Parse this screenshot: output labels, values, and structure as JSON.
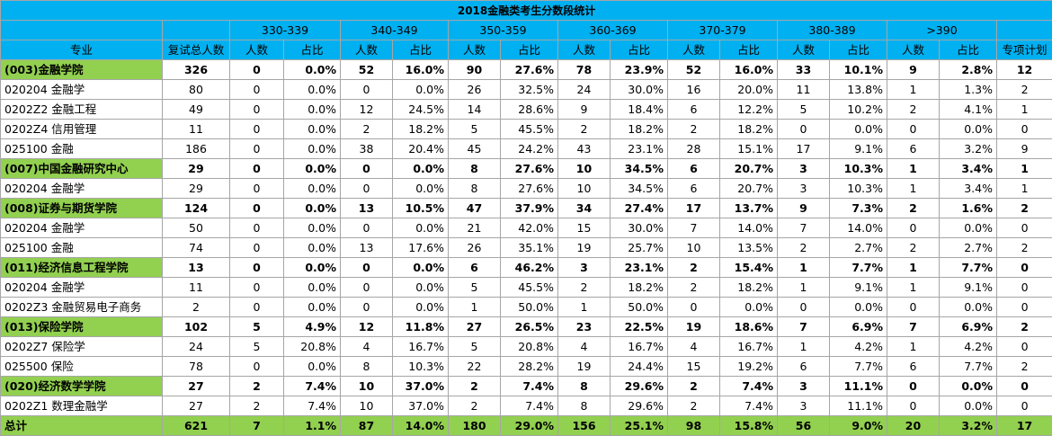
{
  "title": "2018金融类考生分数段统计",
  "header": {
    "groups": [
      "330-339",
      "340-349",
      "350-359",
      "360-369",
      "370-379",
      "380-389",
      ">390"
    ],
    "columns": [
      "专业",
      "复试总人数",
      "人数",
      "占比",
      "人数",
      "占比",
      "人数",
      "占比",
      "人数",
      "占比",
      "人数",
      "占比",
      "人数",
      "占比",
      "人数",
      "占比",
      "专项计划"
    ]
  },
  "rows": [
    [
      "(003)金融学院",
      326,
      0,
      "0.0%",
      52,
      "16.0%",
      90,
      "27.6%",
      78,
      "23.9%",
      52,
      "16.0%",
      33,
      "10.1%",
      9,
      "2.8%",
      12
    ],
    [
      "020204 金融学",
      80,
      0,
      "0.0%",
      0,
      "0.0%",
      26,
      "32.5%",
      24,
      "30.0%",
      16,
      "20.0%",
      11,
      "13.8%",
      1,
      "1.3%",
      2
    ],
    [
      "0202Z2 金融工程",
      49,
      0,
      "0.0%",
      12,
      "24.5%",
      14,
      "28.6%",
      9,
      "18.4%",
      6,
      "12.2%",
      5,
      "10.2%",
      2,
      "4.1%",
      1
    ],
    [
      "0202Z4 信用管理",
      11,
      0,
      "0.0%",
      2,
      "18.2%",
      5,
      "45.5%",
      2,
      "18.2%",
      2,
      "18.2%",
      0,
      "0.0%",
      0,
      "0.0%",
      0
    ],
    [
      "025100 金融",
      186,
      0,
      "0.0%",
      38,
      "20.4%",
      45,
      "24.2%",
      43,
      "23.1%",
      28,
      "15.1%",
      17,
      "9.1%",
      6,
      "3.2%",
      9
    ],
    [
      "(007)中国金融研究中心",
      29,
      0,
      "0.0%",
      0,
      "0.0%",
      8,
      "27.6%",
      10,
      "34.5%",
      6,
      "20.7%",
      3,
      "10.3%",
      1,
      "3.4%",
      1
    ],
    [
      "020204 金融学",
      29,
      0,
      "0.0%",
      0,
      "0.0%",
      8,
      "27.6%",
      10,
      "34.5%",
      6,
      "20.7%",
      3,
      "10.3%",
      1,
      "3.4%",
      1
    ],
    [
      "(008)证券与期货学院",
      124,
      0,
      "0.0%",
      13,
      "10.5%",
      47,
      "37.9%",
      34,
      "27.4%",
      17,
      "13.7%",
      9,
      "7.3%",
      2,
      "1.6%",
      2
    ],
    [
      "020204 金融学",
      50,
      0,
      "0.0%",
      0,
      "0.0%",
      21,
      "42.0%",
      15,
      "30.0%",
      7,
      "14.0%",
      7,
      "14.0%",
      0,
      "0.0%",
      0
    ],
    [
      "025100 金融",
      74,
      0,
      "0.0%",
      13,
      "17.6%",
      26,
      "35.1%",
      19,
      "25.7%",
      10,
      "13.5%",
      2,
      "2.7%",
      2,
      "2.7%",
      2
    ],
    [
      "(011)经济信息工程学院",
      13,
      0,
      "0.0%",
      0,
      "0.0%",
      6,
      "46.2%",
      3,
      "23.1%",
      2,
      "15.4%",
      1,
      "7.7%",
      1,
      "7.7%",
      0
    ],
    [
      "020204 金融学",
      11,
      0,
      "0.0%",
      0,
      "0.0%",
      5,
      "45.5%",
      2,
      "18.2%",
      2,
      "18.2%",
      1,
      "9.1%",
      1,
      "9.1%",
      0
    ],
    [
      "0202Z3 金融贸易电子商务",
      2,
      0,
      "0.0%",
      0,
      "0.0%",
      1,
      "50.0%",
      1,
      "50.0%",
      0,
      "0.0%",
      0,
      "0.0%",
      0,
      "0.0%",
      0
    ],
    [
      "(013)保险学院",
      102,
      5,
      "4.9%",
      12,
      "11.8%",
      27,
      "26.5%",
      23,
      "22.5%",
      19,
      "18.6%",
      7,
      "6.9%",
      7,
      "6.9%",
      2
    ],
    [
      "0202Z7 保险学",
      24,
      5,
      "20.8%",
      4,
      "16.7%",
      5,
      "20.8%",
      4,
      "16.7%",
      4,
      "16.7%",
      1,
      "4.2%",
      1,
      "4.2%",
      0
    ],
    [
      "025500 保险",
      78,
      0,
      "0.0%",
      8,
      "10.3%",
      22,
      "28.2%",
      19,
      "24.4%",
      15,
      "19.2%",
      6,
      "7.7%",
      6,
      "7.7%",
      2
    ],
    [
      "(020)经济数学学院",
      27,
      2,
      "7.4%",
      10,
      "37.0%",
      2,
      "7.4%",
      8,
      "29.6%",
      2,
      "7.4%",
      3,
      "11.1%",
      0,
      "0.0%",
      0
    ],
    [
      "0202Z1 数理金融学",
      27,
      2,
      "7.4%",
      10,
      "37.0%",
      2,
      "7.4%",
      8,
      "29.6%",
      2,
      "7.4%",
      3,
      "11.1%",
      0,
      "0.0%",
      0
    ],
    [
      "总计",
      621,
      7,
      "1.1%",
      87,
      "14.0%",
      180,
      "29.0%",
      156,
      "25.1%",
      98,
      "15.8%",
      56,
      "9.0%",
      20,
      "3.2%",
      17
    ]
  ]
}
